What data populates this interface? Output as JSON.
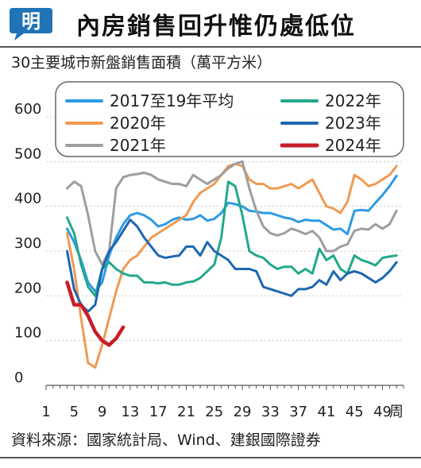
{
  "header": {
    "logo_text": "明",
    "title": "內房銷售回升惟仍處低位"
  },
  "subtitle": "30主要城市新盤銷售面積（萬平方米）",
  "source": "資料來源：國家統計局、Wind、建銀國際證券",
  "colors": {
    "background": "#ffffff",
    "logo": "#1f73b7",
    "rule": "#555555"
  },
  "chart_data": {
    "type": "line",
    "xlabel": "周",
    "ylabel": "",
    "x_ticks": [
      1,
      5,
      9,
      13,
      17,
      21,
      25,
      29,
      33,
      37,
      41,
      45,
      49
    ],
    "xlim": [
      1,
      52
    ],
    "y_ticks": [
      0,
      100,
      200,
      300,
      400,
      500,
      600
    ],
    "ylim": [
      0,
      600
    ],
    "grid": "horizontal",
    "legend_position": "top-right",
    "series": [
      {
        "name": "2017至19年平均",
        "color": "#2d9be4",
        "x": [
          4,
          5,
          6,
          7,
          8,
          9,
          10,
          11,
          12,
          13,
          14,
          15,
          16,
          17,
          18,
          19,
          20,
          21,
          22,
          23,
          24,
          25,
          26,
          27,
          28,
          29,
          30,
          31,
          32,
          33,
          34,
          35,
          36,
          37,
          38,
          39,
          40,
          41,
          42,
          43,
          44,
          45,
          46,
          47,
          48,
          49,
          50,
          51
        ],
        "y": [
          350,
          320,
          280,
          230,
          210,
          230,
          290,
          330,
          360,
          380,
          385,
          380,
          370,
          355,
          360,
          370,
          375,
          370,
          372,
          380,
          368,
          372,
          385,
          408,
          405,
          400,
          390,
          388,
          385,
          385,
          380,
          375,
          372,
          365,
          370,
          368,
          368,
          358,
          348,
          350,
          338,
          390,
          392,
          390,
          408,
          425,
          445,
          468
        ]
      },
      {
        "name": "2020年",
        "color": "#f09a52",
        "x": [
          4,
          5,
          6,
          7,
          8,
          9,
          10,
          11,
          12,
          13,
          14,
          15,
          16,
          17,
          18,
          19,
          20,
          21,
          22,
          23,
          24,
          25,
          26,
          27,
          28,
          29,
          30,
          31,
          32,
          33,
          34,
          35,
          36,
          37,
          38,
          39,
          40,
          41,
          42,
          43,
          44,
          45,
          46,
          47,
          48,
          49,
          50,
          51
        ],
        "y": [
          340,
          260,
          150,
          50,
          40,
          90,
          150,
          210,
          260,
          280,
          290,
          310,
          330,
          340,
          350,
          360,
          370,
          380,
          410,
          430,
          440,
          450,
          470,
          490,
          495,
          490,
          460,
          450,
          450,
          440,
          440,
          445,
          450,
          440,
          450,
          460,
          430,
          400,
          395,
          385,
          410,
          470,
          460,
          445,
          450,
          460,
          470,
          490
        ]
      },
      {
        "name": "2021年",
        "color": "#9e9e9e",
        "x": [
          4,
          5,
          6,
          7,
          8,
          9,
          10,
          11,
          12,
          13,
          14,
          15,
          16,
          17,
          18,
          19,
          20,
          21,
          22,
          23,
          24,
          25,
          26,
          27,
          28,
          29,
          30,
          31,
          32,
          33,
          34,
          35,
          36,
          37,
          38,
          39,
          40,
          41,
          42,
          43,
          44,
          45,
          46,
          47,
          48,
          49,
          50,
          51
        ],
        "y": [
          440,
          455,
          445,
          380,
          300,
          270,
          300,
          440,
          465,
          470,
          472,
          475,
          470,
          460,
          455,
          450,
          450,
          445,
          470,
          460,
          450,
          460,
          470,
          485,
          495,
          500,
          440,
          390,
          355,
          340,
          335,
          340,
          350,
          345,
          338,
          345,
          330,
          300,
          300,
          310,
          315,
          345,
          350,
          348,
          360,
          350,
          360,
          390
        ]
      },
      {
        "name": "2022年",
        "color": "#23a88c",
        "x": [
          4,
          5,
          6,
          7,
          8,
          9,
          10,
          11,
          12,
          13,
          14,
          15,
          16,
          17,
          18,
          19,
          20,
          21,
          22,
          23,
          24,
          25,
          26,
          27,
          28,
          29,
          30,
          31,
          32,
          33,
          34,
          35,
          36,
          37,
          38,
          39,
          40,
          41,
          42,
          43,
          44,
          45,
          46,
          47,
          48,
          49,
          50,
          51
        ],
        "y": [
          375,
          340,
          270,
          220,
          200,
          260,
          275,
          260,
          250,
          245,
          245,
          230,
          230,
          228,
          230,
          225,
          225,
          230,
          232,
          240,
          255,
          270,
          330,
          455,
          445,
          380,
          300,
          290,
          285,
          270,
          260,
          265,
          265,
          250,
          260,
          250,
          305,
          280,
          290,
          260,
          250,
          290,
          280,
          275,
          268,
          285,
          288,
          290
        ]
      },
      {
        "name": "2023年",
        "color": "#1d67b0",
        "x": [
          4,
          5,
          6,
          7,
          8,
          9,
          10,
          11,
          12,
          13,
          14,
          15,
          16,
          17,
          18,
          19,
          20,
          21,
          22,
          23,
          24,
          25,
          26,
          27,
          28,
          29,
          30,
          31,
          32,
          33,
          34,
          35,
          36,
          37,
          38,
          39,
          40,
          41,
          42,
          43,
          44,
          45,
          46,
          47,
          48,
          49,
          50,
          51
        ],
        "y": [
          300,
          215,
          180,
          165,
          180,
          260,
          300,
          320,
          345,
          370,
          355,
          330,
          310,
          290,
          285,
          288,
          290,
          310,
          310,
          290,
          320,
          300,
          290,
          280,
          260,
          260,
          260,
          255,
          220,
          215,
          210,
          205,
          200,
          215,
          215,
          220,
          235,
          225,
          255,
          235,
          250,
          255,
          250,
          240,
          230,
          240,
          255,
          275
        ]
      },
      {
        "name": "2024年",
        "color": "#c81e2a",
        "x": [
          4,
          5,
          6,
          7,
          8,
          9,
          10,
          11,
          12
        ],
        "y": [
          230,
          180,
          180,
          155,
          120,
          100,
          90,
          105,
          130
        ]
      }
    ]
  }
}
